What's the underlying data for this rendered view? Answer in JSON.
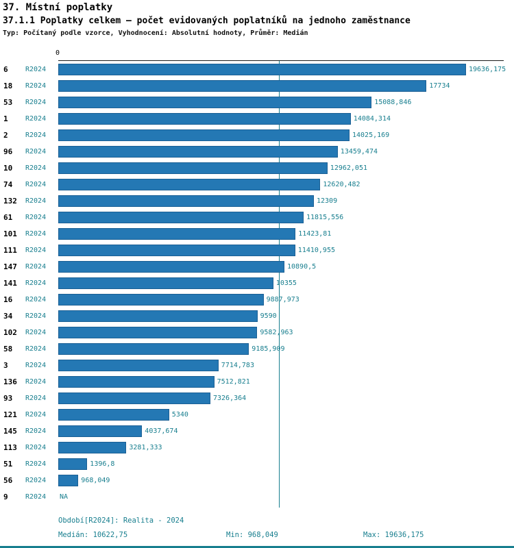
{
  "header": {
    "title": "37. Místní poplatky",
    "subtitle": "37.1.1 Poplatky celkem – počet evidovaných poplatníků na jednoho zaměstnance",
    "meta": "Typ: Počítaný podle vzorce, Vyhodnocení: Absolutní hodnoty, Průměr: Medián"
  },
  "chart_data": {
    "type": "bar",
    "orientation": "horizontal",
    "title": "37.1.1 Poplatky celkem – počet evidovaných poplatníků na jednoho zaměstnance",
    "series_label": "R2024",
    "axis_zero_label": "0",
    "xlim": [
      0,
      19636.175
    ],
    "median_value": 10622.75,
    "grid": false,
    "legend_position": "none",
    "categories": [
      "6",
      "18",
      "53",
      "1",
      "2",
      "96",
      "10",
      "74",
      "132",
      "61",
      "101",
      "111",
      "147",
      "141",
      "16",
      "34",
      "102",
      "58",
      "3",
      "136",
      "93",
      "121",
      "145",
      "113",
      "51",
      "56",
      "9"
    ],
    "values": [
      19636.175,
      17734,
      15088.846,
      14084.314,
      14025.169,
      13459.474,
      12962.051,
      12620.482,
      12309,
      11815.556,
      11423.81,
      11410.955,
      10890.5,
      10355,
      9887.973,
      9590,
      9582.963,
      9185.909,
      7714.783,
      7512.821,
      7326.364,
      5340,
      4037.674,
      3281.333,
      1396.8,
      968.049,
      null
    ],
    "value_labels": [
      "19636,175",
      "17734",
      "15088,846",
      "14084,314",
      "14025,169",
      "13459,474",
      "12962,051",
      "12620,482",
      "12309",
      "11815,556",
      "11423,81",
      "11410,955",
      "10890,5",
      "10355",
      "9887,973",
      "9590",
      "9582,963",
      "9185,909",
      "7714,783",
      "7512,821",
      "7326,364",
      "5340",
      "4037,674",
      "3281,333",
      "1396,8",
      "968,049",
      "NA"
    ]
  },
  "footer": {
    "period": "Období[R2024]: Realita - 2024",
    "median": "Medián: 10622,75",
    "min": "Min: 968,049",
    "max": "Max: 19636,175"
  },
  "colors": {
    "bar": "#2478b4",
    "bar_border": "#1a5f94",
    "accent_text": "#177e8e",
    "axis_line": "#1a1a1a"
  }
}
